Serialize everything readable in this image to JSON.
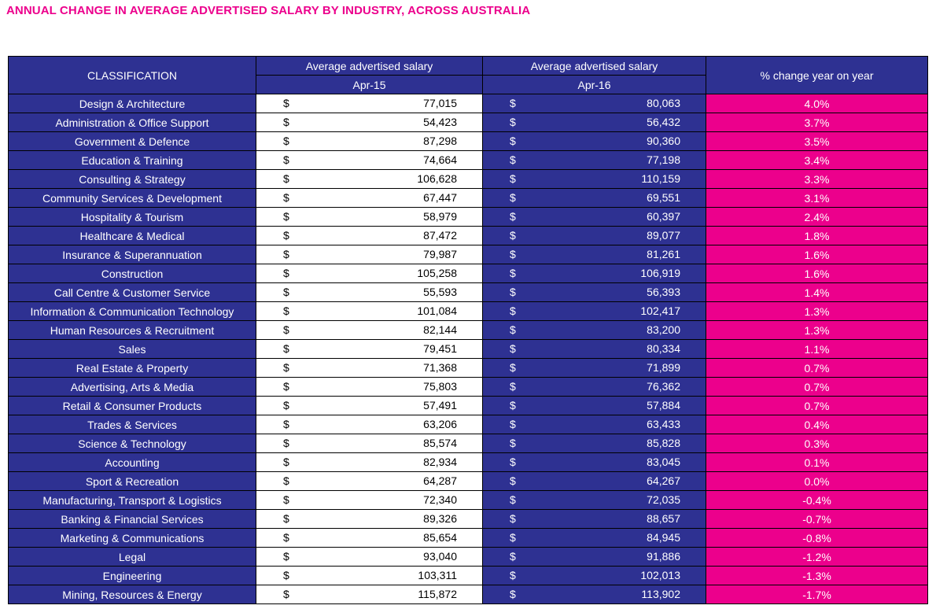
{
  "title": "ANNUAL CHANGE IN AVERAGE ADVERTISED SALARY BY INDUSTRY, ACROSS AUSTRALIA",
  "colors": {
    "navy": "#2e3192",
    "pink": "#ec008c"
  },
  "headers": {
    "classification": "CLASSIFICATION",
    "avg_salary": "Average advertised salary",
    "apr15": "Apr-15",
    "apr16": "Apr-16",
    "pct_change": "% change year on year",
    "currency": "$"
  },
  "chart_data": {
    "type": "table",
    "title": "ANNUAL CHANGE IN AVERAGE ADVERTISED SALARY BY INDUSTRY, ACROSS AUSTRALIA",
    "columns": [
      "CLASSIFICATION",
      "Average advertised salary Apr-15",
      "Average advertised salary Apr-16",
      "% change year on year"
    ],
    "rows": [
      {
        "classification": "Design & Architecture",
        "apr15": "77,015",
        "apr16": "80,063",
        "change": "4.0%"
      },
      {
        "classification": "Administration & Office Support",
        "apr15": "54,423",
        "apr16": "56,432",
        "change": "3.7%"
      },
      {
        "classification": "Government & Defence",
        "apr15": "87,298",
        "apr16": "90,360",
        "change": "3.5%"
      },
      {
        "classification": "Education & Training",
        "apr15": "74,664",
        "apr16": "77,198",
        "change": "3.4%"
      },
      {
        "classification": "Consulting & Strategy",
        "apr15": "106,628",
        "apr16": "110,159",
        "change": "3.3%"
      },
      {
        "classification": "Community Services & Development",
        "apr15": "67,447",
        "apr16": "69,551",
        "change": "3.1%"
      },
      {
        "classification": "Hospitality & Tourism",
        "apr15": "58,979",
        "apr16": "60,397",
        "change": "2.4%"
      },
      {
        "classification": "Healthcare & Medical",
        "apr15": "87,472",
        "apr16": "89,077",
        "change": "1.8%"
      },
      {
        "classification": "Insurance & Superannuation",
        "apr15": "79,987",
        "apr16": "81,261",
        "change": "1.6%"
      },
      {
        "classification": "Construction",
        "apr15": "105,258",
        "apr16": "106,919",
        "change": "1.6%"
      },
      {
        "classification": "Call Centre & Customer Service",
        "apr15": "55,593",
        "apr16": "56,393",
        "change": "1.4%"
      },
      {
        "classification": "Information & Communication Technology",
        "apr15": "101,084",
        "apr16": "102,417",
        "change": "1.3%"
      },
      {
        "classification": "Human Resources & Recruitment",
        "apr15": "82,144",
        "apr16": "83,200",
        "change": "1.3%"
      },
      {
        "classification": "Sales",
        "apr15": "79,451",
        "apr16": "80,334",
        "change": "1.1%"
      },
      {
        "classification": "Real Estate & Property",
        "apr15": "71,368",
        "apr16": "71,899",
        "change": "0.7%"
      },
      {
        "classification": "Advertising, Arts & Media",
        "apr15": "75,803",
        "apr16": "76,362",
        "change": "0.7%"
      },
      {
        "classification": "Retail & Consumer Products",
        "apr15": "57,491",
        "apr16": "57,884",
        "change": "0.7%"
      },
      {
        "classification": "Trades & Services",
        "apr15": "63,206",
        "apr16": "63,433",
        "change": "0.4%"
      },
      {
        "classification": "Science & Technology",
        "apr15": "85,574",
        "apr16": "85,828",
        "change": "0.3%"
      },
      {
        "classification": "Accounting",
        "apr15": "82,934",
        "apr16": "83,045",
        "change": "0.1%"
      },
      {
        "classification": "Sport & Recreation",
        "apr15": "64,287",
        "apr16": "64,267",
        "change": "0.0%"
      },
      {
        "classification": "Manufacturing, Transport & Logistics",
        "apr15": "72,340",
        "apr16": "72,035",
        "change": "-0.4%"
      },
      {
        "classification": "Banking & Financial Services",
        "apr15": "89,326",
        "apr16": "88,657",
        "change": "-0.7%"
      },
      {
        "classification": "Marketing & Communications",
        "apr15": "85,654",
        "apr16": "84,945",
        "change": "-0.8%"
      },
      {
        "classification": "Legal",
        "apr15": "93,040",
        "apr16": "91,886",
        "change": "-1.2%"
      },
      {
        "classification": "Engineering",
        "apr15": "103,311",
        "apr16": "102,013",
        "change": "-1.3%"
      },
      {
        "classification": "Mining, Resources & Energy",
        "apr15": "115,872",
        "apr16": "113,902",
        "change": "-1.7%"
      }
    ]
  }
}
